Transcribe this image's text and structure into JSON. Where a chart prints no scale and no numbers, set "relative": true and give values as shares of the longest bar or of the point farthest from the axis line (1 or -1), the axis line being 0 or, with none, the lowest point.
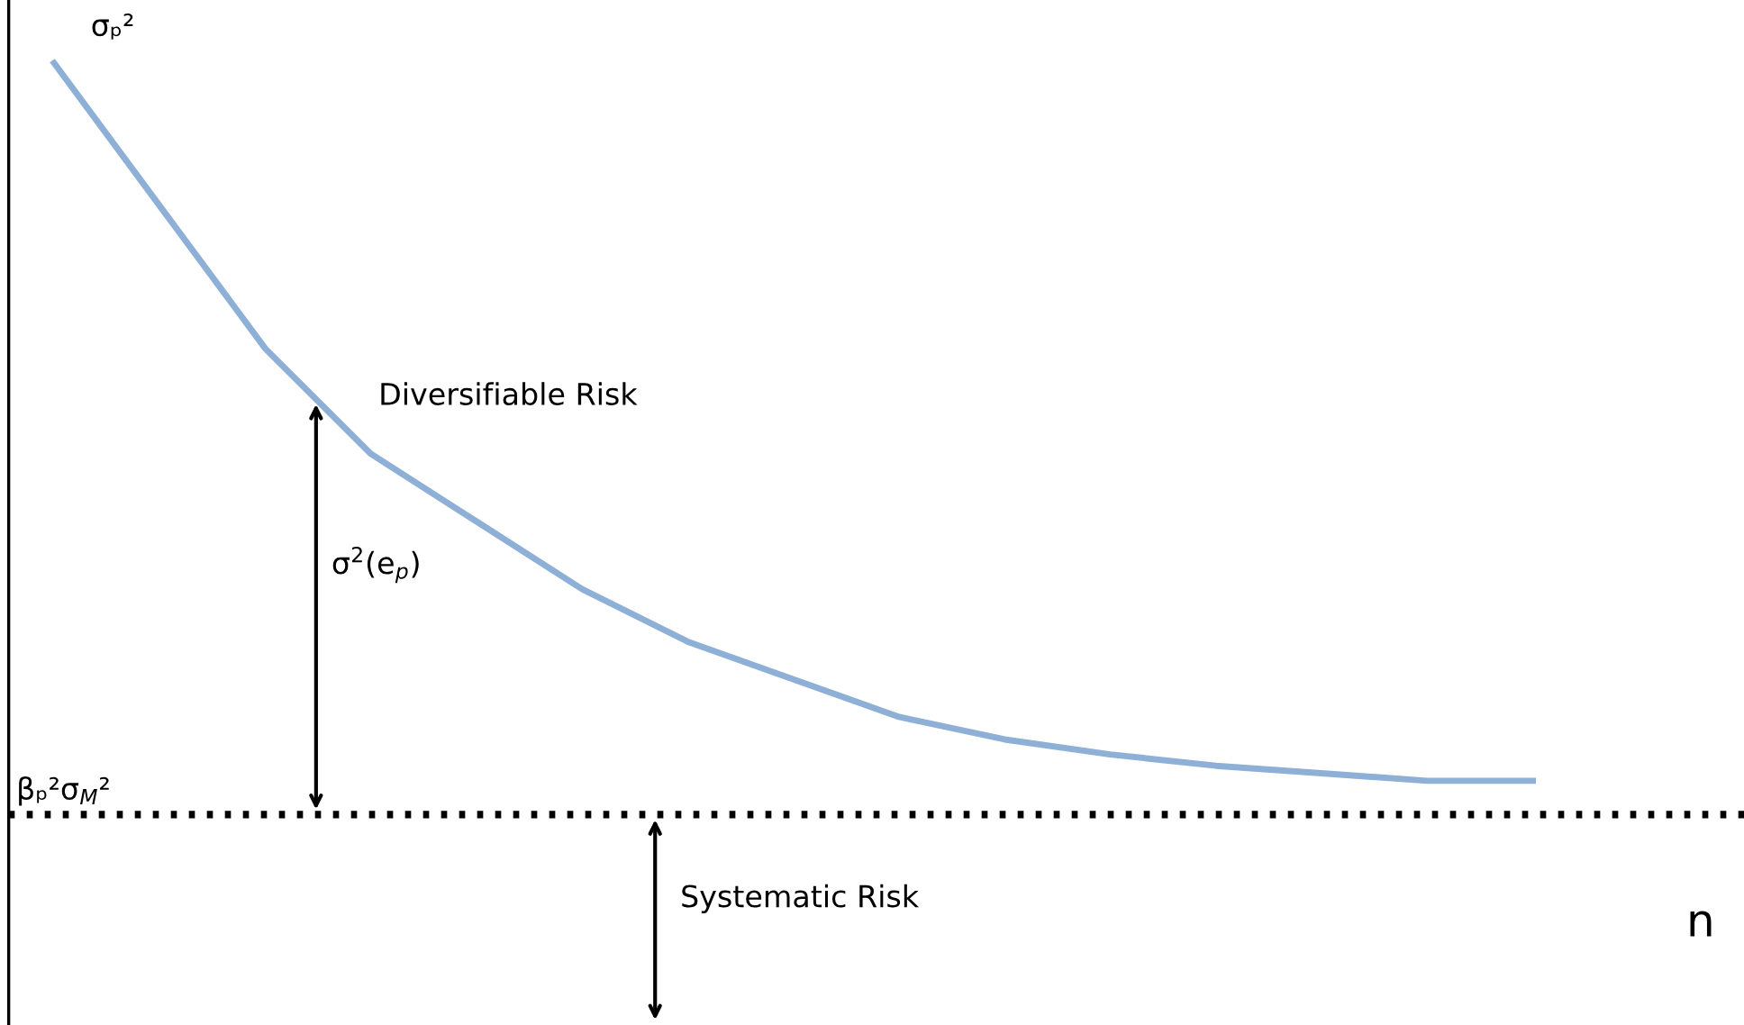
{
  "chart_data": {
    "type": "line",
    "relative": true,
    "categories": [
      null,
      null,
      null,
      null,
      null,
      null,
      null,
      null,
      null,
      null,
      null,
      null,
      null,
      null,
      null
    ],
    "series": [
      {
        "color": "#8fb0d6",
        "values": [
          1,
          0.81,
          0.62,
          0.48,
          0.39,
          0.3,
          0.23,
          0.18,
          0.13,
          0.1,
          0.08,
          0.065,
          0.055,
          0.045,
          0.045
        ]
      }
    ],
    "xlabel": "n",
    "ref_lines": [
      {
        "axis": "y",
        "value": 0,
        "label": "βₚ²σ$_{M}$²",
        "color": "#000000",
        "line_style": "dotted"
      }
    ],
    "annotations": [
      "σₚ²",
      "Diversifiable Risk",
      "σ$^{2}$(e$_{p}$)",
      "Systematic Risk"
    ],
    "legend": false,
    "marker": "none",
    "line_style": "solid"
  }
}
